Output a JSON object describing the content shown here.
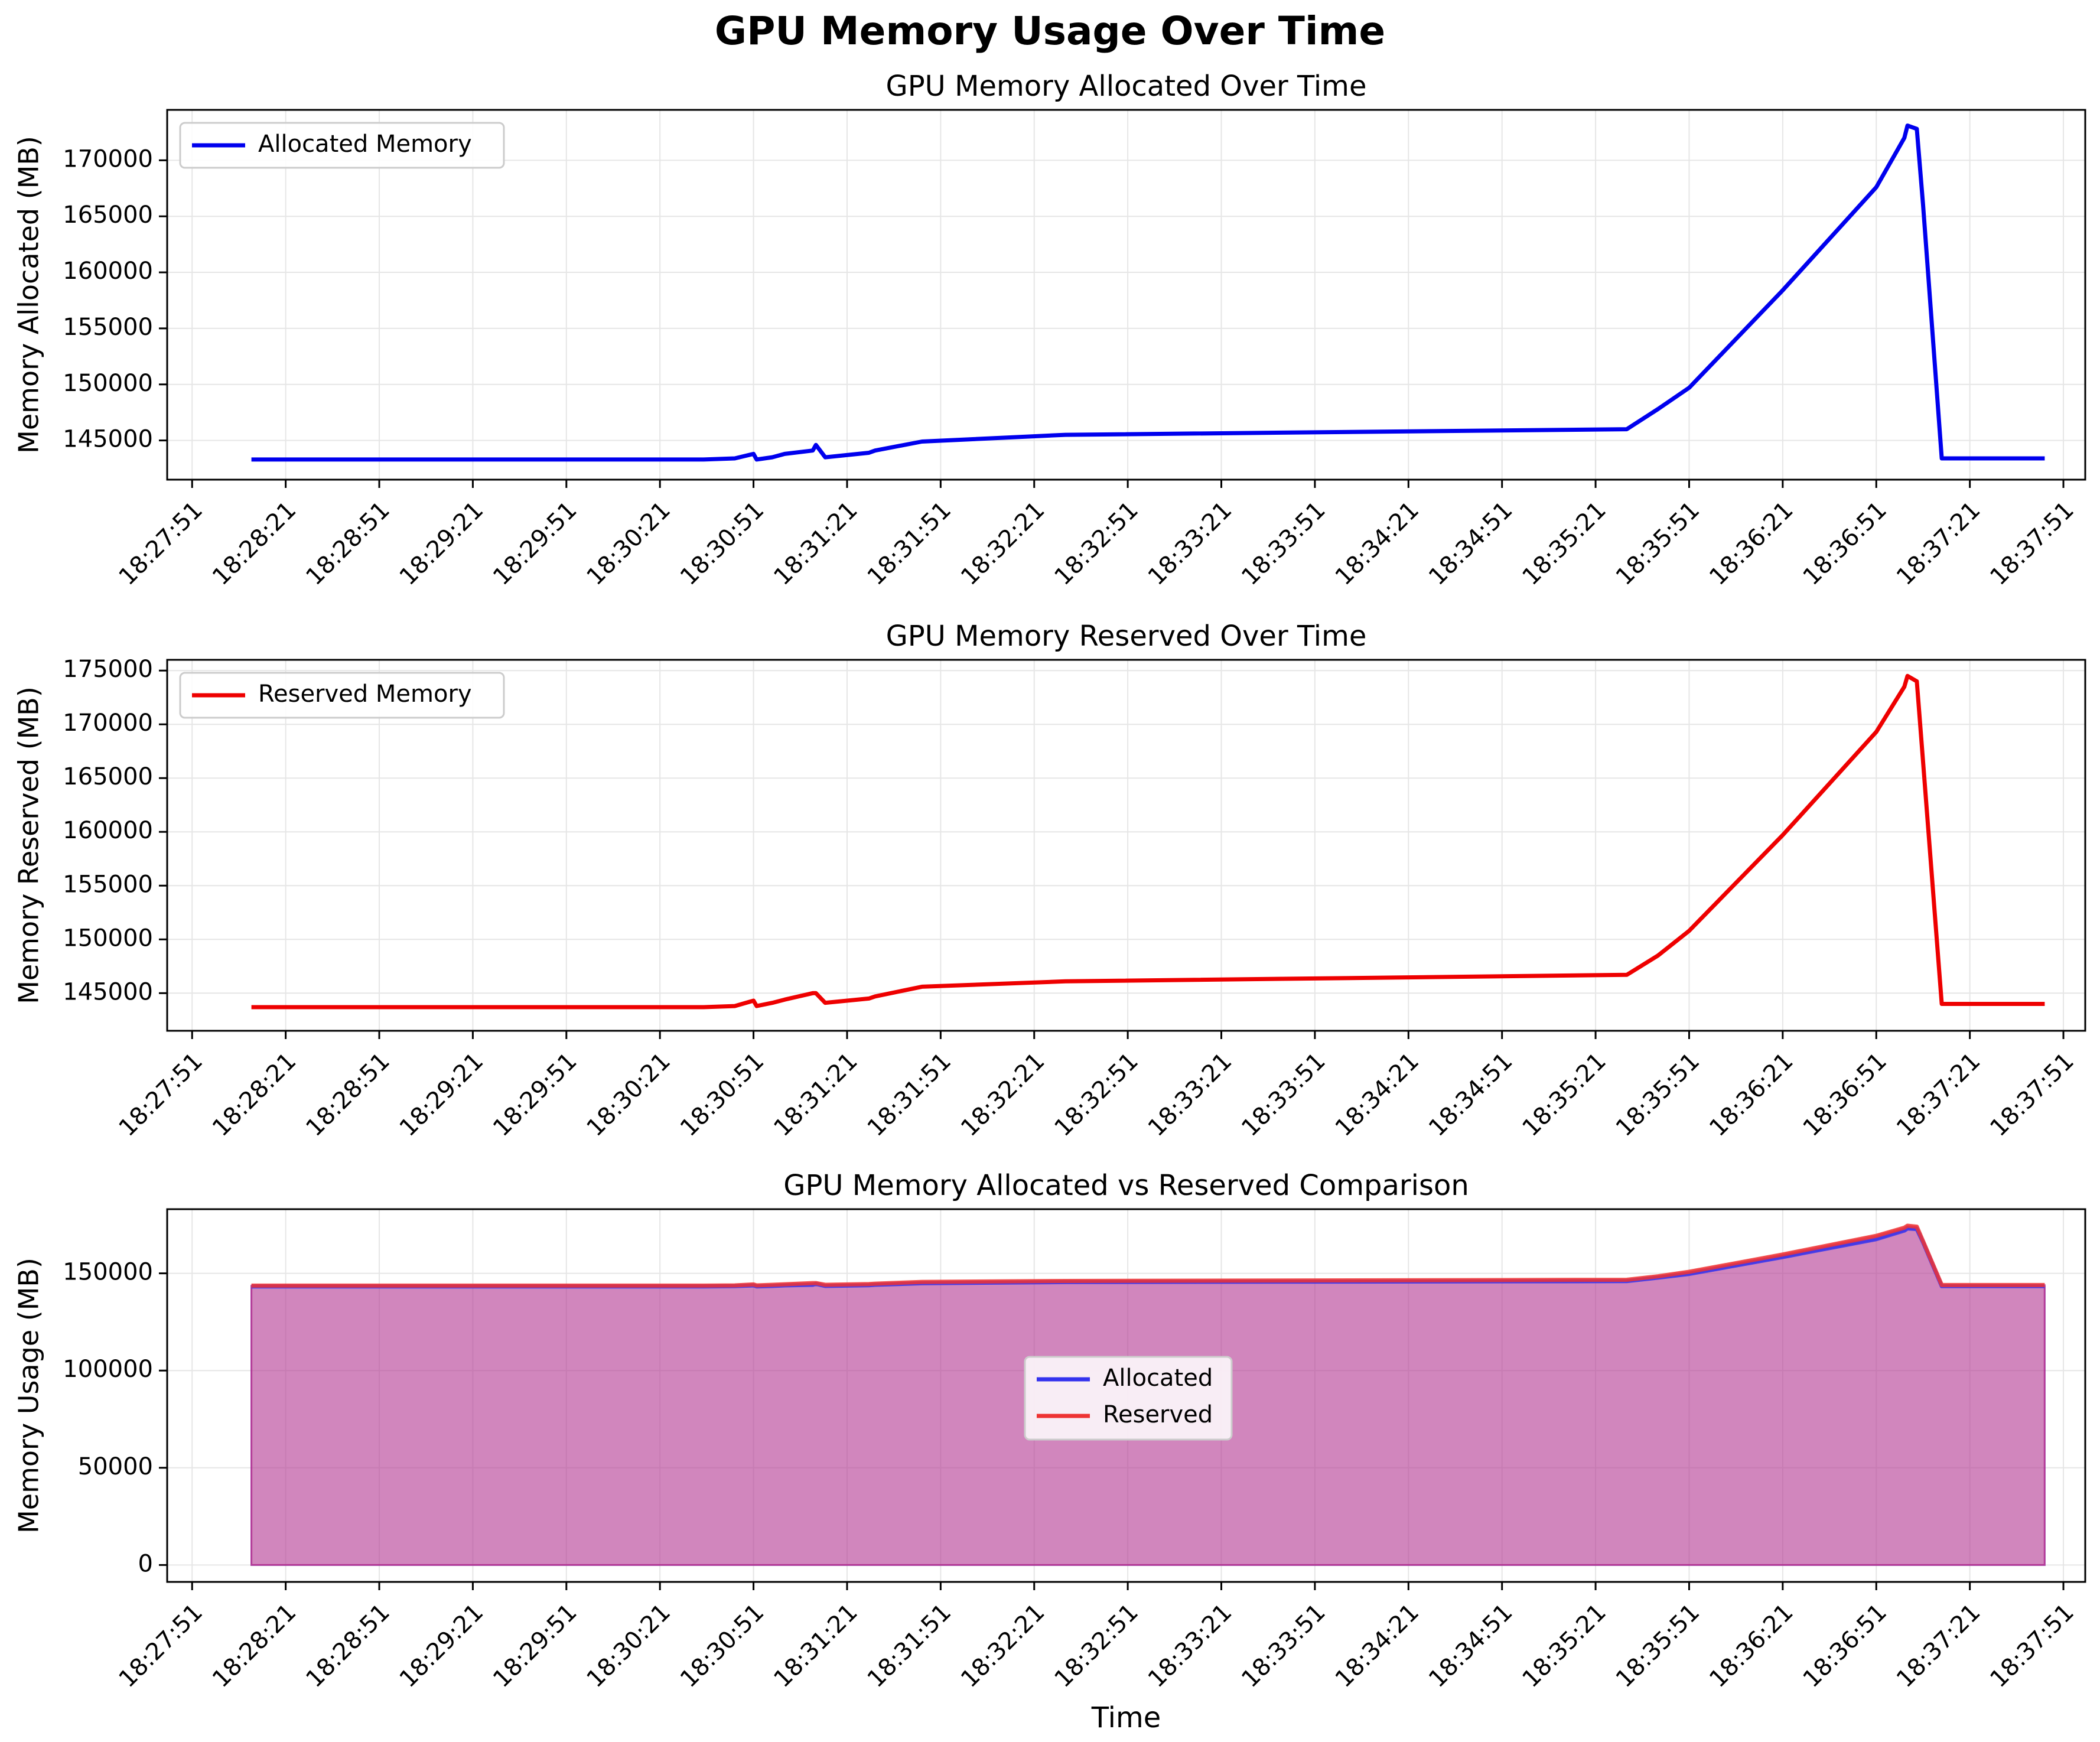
{
  "figure_title": "GPU Memory Usage Over Time",
  "colors": {
    "allocated": "#0000ee",
    "reserved": "#ee0000",
    "fill": "#c77db3",
    "grid": "#e6e6e6"
  },
  "chart_data": [
    {
      "type": "line",
      "title": "GPU Memory Allocated Over Time",
      "xlabel": "",
      "ylabel": "Memory Allocated (MB)",
      "x_ticks": [
        "18:27:51",
        "18:28:21",
        "18:28:51",
        "18:29:21",
        "18:29:51",
        "18:30:21",
        "18:30:51",
        "18:31:21",
        "18:31:51",
        "18:32:21",
        "18:32:51",
        "18:33:21",
        "18:33:51",
        "18:34:21",
        "18:34:51",
        "18:35:21",
        "18:35:51",
        "18:36:21",
        "18:36:51",
        "18:37:21",
        "18:37:51"
      ],
      "y_ticks": [
        145000,
        150000,
        155000,
        160000,
        165000,
        170000
      ],
      "ylim": [
        141500,
        174500
      ],
      "xlim": [
        "18:27:43",
        "18:37:58"
      ],
      "grid": true,
      "legend": {
        "position": "upper-left",
        "entries": [
          "Allocated Memory"
        ]
      },
      "series": [
        {
          "name": "Allocated Memory",
          "color": "#0000ee",
          "x": [
            "18:28:10",
            "18:28:15",
            "18:30:35",
            "18:30:45",
            "18:30:51",
            "18:30:52",
            "18:30:57",
            "18:31:01",
            "18:31:10",
            "18:31:11",
            "18:31:14",
            "18:31:28",
            "18:31:30",
            "18:31:45",
            "18:32:31",
            "18:35:31",
            "18:35:41",
            "18:35:51",
            "18:36:21",
            "18:36:51",
            "18:37:00",
            "18:37:01",
            "18:37:04",
            "18:37:06",
            "18:37:12",
            "18:37:25",
            "18:37:45"
          ],
          "y": [
            143300,
            143300,
            143300,
            143400,
            143800,
            143300,
            143500,
            143800,
            144100,
            144600,
            143500,
            143900,
            144100,
            144900,
            145500,
            146000,
            147800,
            149700,
            158400,
            167600,
            172000,
            173100,
            172800,
            166000,
            143400,
            143400,
            143400
          ]
        }
      ]
    },
    {
      "type": "line",
      "title": "GPU Memory Reserved Over Time",
      "xlabel": "",
      "ylabel": "Memory Reserved (MB)",
      "x_ticks": [
        "18:27:51",
        "18:28:21",
        "18:28:51",
        "18:29:21",
        "18:29:51",
        "18:30:21",
        "18:30:51",
        "18:31:21",
        "18:31:51",
        "18:32:21",
        "18:32:51",
        "18:33:21",
        "18:33:51",
        "18:34:21",
        "18:34:51",
        "18:35:21",
        "18:35:51",
        "18:36:21",
        "18:36:51",
        "18:37:21",
        "18:37:51"
      ],
      "y_ticks": [
        145000,
        150000,
        155000,
        160000,
        165000,
        170000,
        175000
      ],
      "ylim": [
        141500,
        176000
      ],
      "xlim": [
        "18:27:43",
        "18:37:58"
      ],
      "grid": true,
      "legend": {
        "position": "upper-left",
        "entries": [
          "Reserved Memory"
        ]
      },
      "series": [
        {
          "name": "Reserved Memory",
          "color": "#ee0000",
          "x": [
            "18:28:10",
            "18:28:15",
            "18:30:35",
            "18:30:45",
            "18:30:51",
            "18:30:52",
            "18:30:57",
            "18:31:01",
            "18:31:10",
            "18:31:11",
            "18:31:14",
            "18:31:28",
            "18:31:30",
            "18:31:45",
            "18:32:31",
            "18:35:31",
            "18:35:41",
            "18:35:51",
            "18:36:21",
            "18:36:51",
            "18:37:00",
            "18:37:01",
            "18:37:04",
            "18:37:06",
            "18:37:12",
            "18:37:25",
            "18:37:45"
          ],
          "y": [
            143700,
            143700,
            143700,
            143800,
            144300,
            143800,
            144100,
            144400,
            145000,
            145000,
            144100,
            144500,
            144700,
            145600,
            146100,
            146700,
            148500,
            150800,
            159700,
            169300,
            173500,
            174500,
            174000,
            166500,
            144000,
            144000,
            144000
          ]
        }
      ]
    },
    {
      "type": "area",
      "title": "GPU Memory Allocated vs Reserved Comparison",
      "xlabel": "Time",
      "ylabel": "Memory Usage (MB)",
      "x_ticks": [
        "18:27:51",
        "18:28:21",
        "18:28:51",
        "18:29:21",
        "18:29:51",
        "18:30:21",
        "18:30:51",
        "18:31:21",
        "18:31:51",
        "18:32:21",
        "18:32:51",
        "18:33:21",
        "18:33:51",
        "18:34:21",
        "18:34:51",
        "18:35:21",
        "18:35:51",
        "18:36:21",
        "18:36:51",
        "18:37:21",
        "18:37:51"
      ],
      "y_ticks": [
        0,
        50000,
        100000,
        150000
      ],
      "ylim": [
        -8700,
        183000
      ],
      "xlim": [
        "18:27:43",
        "18:37:58"
      ],
      "grid": true,
      "legend": {
        "position": "center",
        "entries": [
          "Allocated",
          "Reserved"
        ]
      },
      "series": [
        {
          "name": "Allocated",
          "color": "#3333ee",
          "fill": true
        },
        {
          "name": "Reserved",
          "color": "#ee3333",
          "fill": true
        }
      ]
    }
  ]
}
